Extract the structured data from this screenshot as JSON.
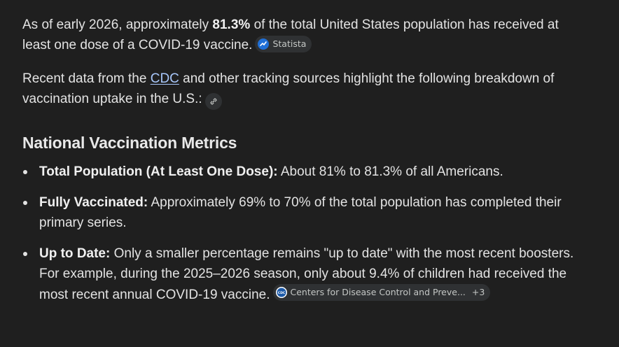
{
  "intro": {
    "before_bold": "As of early 2026, approximately ",
    "bold": "81.3%",
    "after_bold": " of the total United States population has received at least one dose of a COVID-19 vaccine.",
    "source_chip": {
      "label": "Statista",
      "icon": "statista-icon"
    }
  },
  "recent": {
    "before_link": "Recent data from the ",
    "link": "CDC",
    "after_link": " and other tracking sources highlight the following breakdown of vaccination uptake in the U.S.:",
    "link_icon": "link-icon"
  },
  "section_heading": "National Vaccination Metrics",
  "metrics": [
    {
      "label": "Total Population (At Least One Dose):",
      "text": " About 81% to 81.3% of all Americans."
    },
    {
      "label": "Fully Vaccinated:",
      "text": " Approximately 69% to 70% of the total population has completed their primary series."
    },
    {
      "label": "Up to Date:",
      "text": " Only a smaller percentage remains \"up to date\" with the most recent boosters. For example, during the 2025–2026 season, only about 9.4% of children had received the most recent annual COVID-19 vaccine.",
      "source_chip": {
        "label": "Centers for Disease Control and Preve...",
        "more": "+3",
        "icon": "cdc-icon"
      }
    }
  ],
  "colors": {
    "background": "#1f1f1f",
    "text": "#e3e3e3",
    "link": "#a8c7fa",
    "chip_bg": "#2f3133"
  }
}
